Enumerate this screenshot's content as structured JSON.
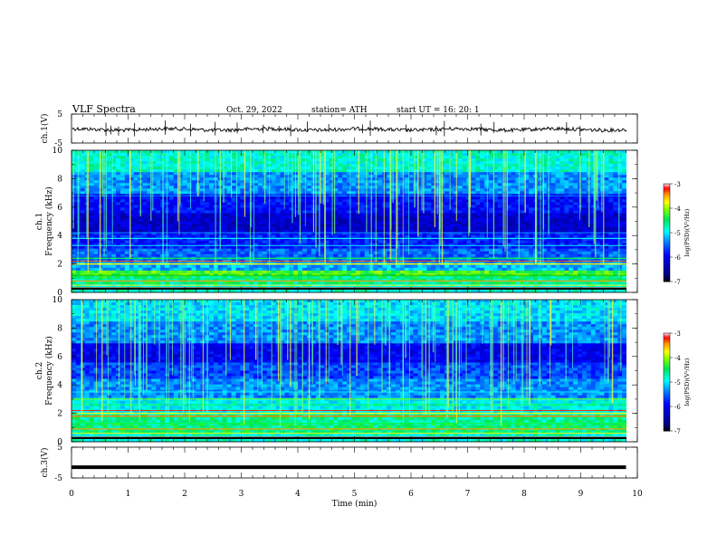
{
  "header": {
    "title": "VLF  Spectra",
    "date": "Oct. 29, 2022",
    "station": "station= ATH",
    "start": "start  UT  =    16: 20: 1"
  },
  "chart_data": [
    {
      "type": "line",
      "panel": "ch1-waveform",
      "ylabel": "ch.1(V)",
      "ylim": [
        -5,
        5
      ],
      "yticks": [
        "5",
        "-5"
      ],
      "xlim": [
        0,
        10
      ],
      "color": "#000000"
    },
    {
      "type": "heatmap",
      "panel": "ch1-spectrogram",
      "ylabel_line1": "ch.1",
      "ylabel_line2": "Frequency (kHz)",
      "ylim": [
        0,
        10
      ],
      "yticks": [
        "0",
        "2",
        "4",
        "6",
        "8",
        "10"
      ],
      "xlim": [
        0,
        10
      ],
      "colorbar": {
        "label": "log(PSD)(V²/Hz)",
        "ticks": [
          "-3",
          "-4",
          "-5",
          "-6",
          "-7"
        ],
        "range": [
          -7,
          -3
        ]
      }
    },
    {
      "type": "heatmap",
      "panel": "ch2-spectrogram",
      "ylabel_line1": "ch.2",
      "ylabel_line2": "Frequency (kHz)",
      "ylim": [
        0,
        10
      ],
      "yticks": [
        "0",
        "2",
        "4",
        "6",
        "8",
        "10"
      ],
      "xlim": [
        0,
        10
      ],
      "colorbar": {
        "label": "log(PSD)(V²/Hz)",
        "ticks": [
          "-3",
          "-4",
          "-5",
          "-6",
          "-7"
        ],
        "range": [
          -7,
          -3
        ]
      }
    },
    {
      "type": "line",
      "panel": "ch3-waveform",
      "ylabel": "ch.3(V)",
      "ylim": [
        -5,
        5
      ],
      "yticks": [
        "5",
        "-5"
      ],
      "xlim": [
        0,
        10
      ],
      "x": [
        0,
        9.8
      ],
      "y": [
        -1.5,
        -1.5
      ],
      "color": "#000000"
    }
  ],
  "xaxis": {
    "label": "Time  (min)",
    "ticks": [
      "0",
      "1",
      "2",
      "3",
      "4",
      "5",
      "6",
      "7",
      "8",
      "9",
      "10"
    ]
  }
}
